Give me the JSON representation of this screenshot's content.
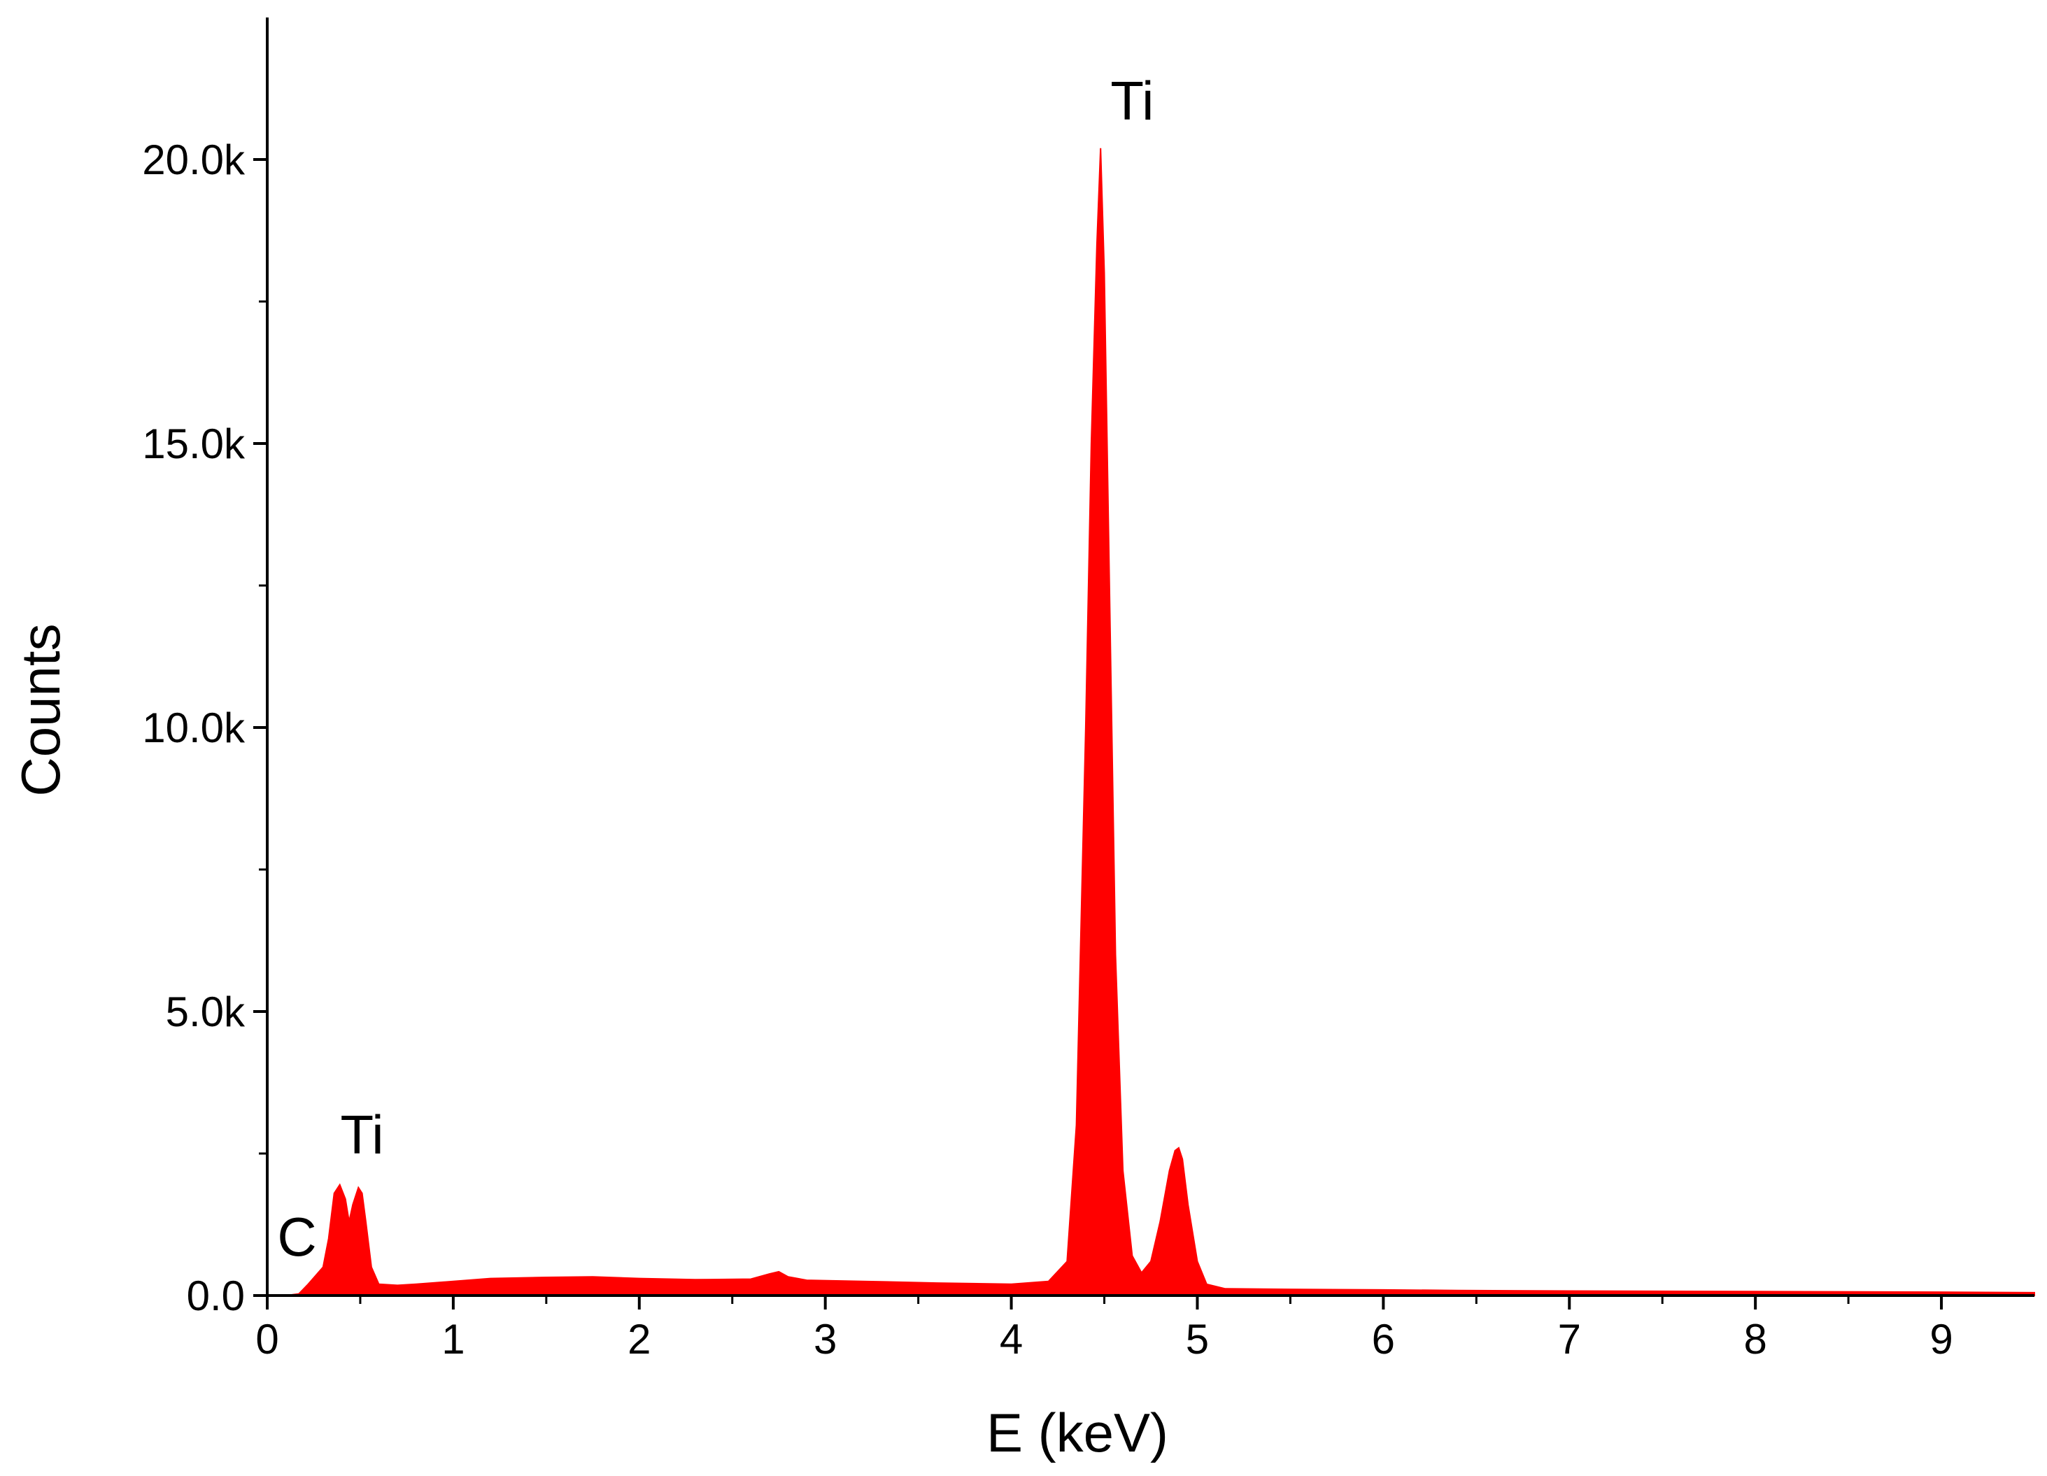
{
  "chart_data": {
    "type": "area",
    "xlabel": "E (keV)",
    "ylabel": "Counts",
    "xlim": [
      0,
      9.5
    ],
    "ylim": [
      0,
      22500
    ],
    "x_ticks": [
      {
        "value": 0,
        "label": "0"
      },
      {
        "value": 1,
        "label": "1"
      },
      {
        "value": 2,
        "label": "2"
      },
      {
        "value": 3,
        "label": "3"
      },
      {
        "value": 4,
        "label": "4"
      },
      {
        "value": 5,
        "label": "5"
      },
      {
        "value": 6,
        "label": "6"
      },
      {
        "value": 7,
        "label": "7"
      },
      {
        "value": 8,
        "label": "8"
      },
      {
        "value": 9,
        "label": "9"
      }
    ],
    "y_ticks": [
      {
        "value": 0,
        "label": "0.0"
      },
      {
        "value": 5000,
        "label": "5.0k"
      },
      {
        "value": 10000,
        "label": "10.0k"
      },
      {
        "value": 15000,
        "label": "15.0k"
      },
      {
        "value": 20000,
        "label": "20.0k"
      }
    ],
    "grid": false,
    "color": "#ff0000",
    "series": [
      {
        "x": [
          0.0,
          0.1,
          0.17,
          0.22,
          0.26,
          0.3,
          0.33,
          0.36,
          0.39,
          0.42,
          0.44,
          0.46,
          0.49,
          0.51,
          0.53,
          0.56,
          0.6,
          0.7,
          0.8,
          1.0,
          1.2,
          1.5,
          1.75,
          2.0,
          2.3,
          2.6,
          2.7,
          2.75,
          2.8,
          2.9,
          3.2,
          3.6,
          4.0,
          4.2,
          4.3,
          4.35,
          4.4,
          4.43,
          4.46,
          4.48,
          4.5,
          4.53,
          4.56,
          4.6,
          4.65,
          4.7,
          4.75,
          4.8,
          4.85,
          4.88,
          4.9,
          4.92,
          4.95,
          5.0,
          5.05,
          5.15,
          5.5,
          6.0,
          6.4,
          7.0,
          8.0,
          9.0,
          9.5
        ],
        "y": [
          0,
          0,
          30,
          200,
          350,
          500,
          1000,
          1800,
          1950,
          1700,
          1300,
          1600,
          1900,
          1800,
          1300,
          500,
          200,
          180,
          200,
          250,
          300,
          320,
          330,
          300,
          280,
          290,
          380,
          420,
          330,
          270,
          250,
          220,
          200,
          250,
          600,
          3000,
          10000,
          15000,
          18500,
          20200,
          18000,
          12000,
          6000,
          2200,
          700,
          400,
          600,
          1300,
          2200,
          2550,
          2600,
          2400,
          1600,
          600,
          200,
          120,
          110,
          100,
          90,
          80,
          70,
          60,
          50
        ]
      }
    ],
    "annotations": [
      {
        "text": "C",
        "x": 0.16,
        "y": 700
      },
      {
        "text": "Ti",
        "x": 0.51,
        "y": 2500
      },
      {
        "text": "Ti",
        "x": 4.65,
        "y": 20700
      }
    ]
  }
}
